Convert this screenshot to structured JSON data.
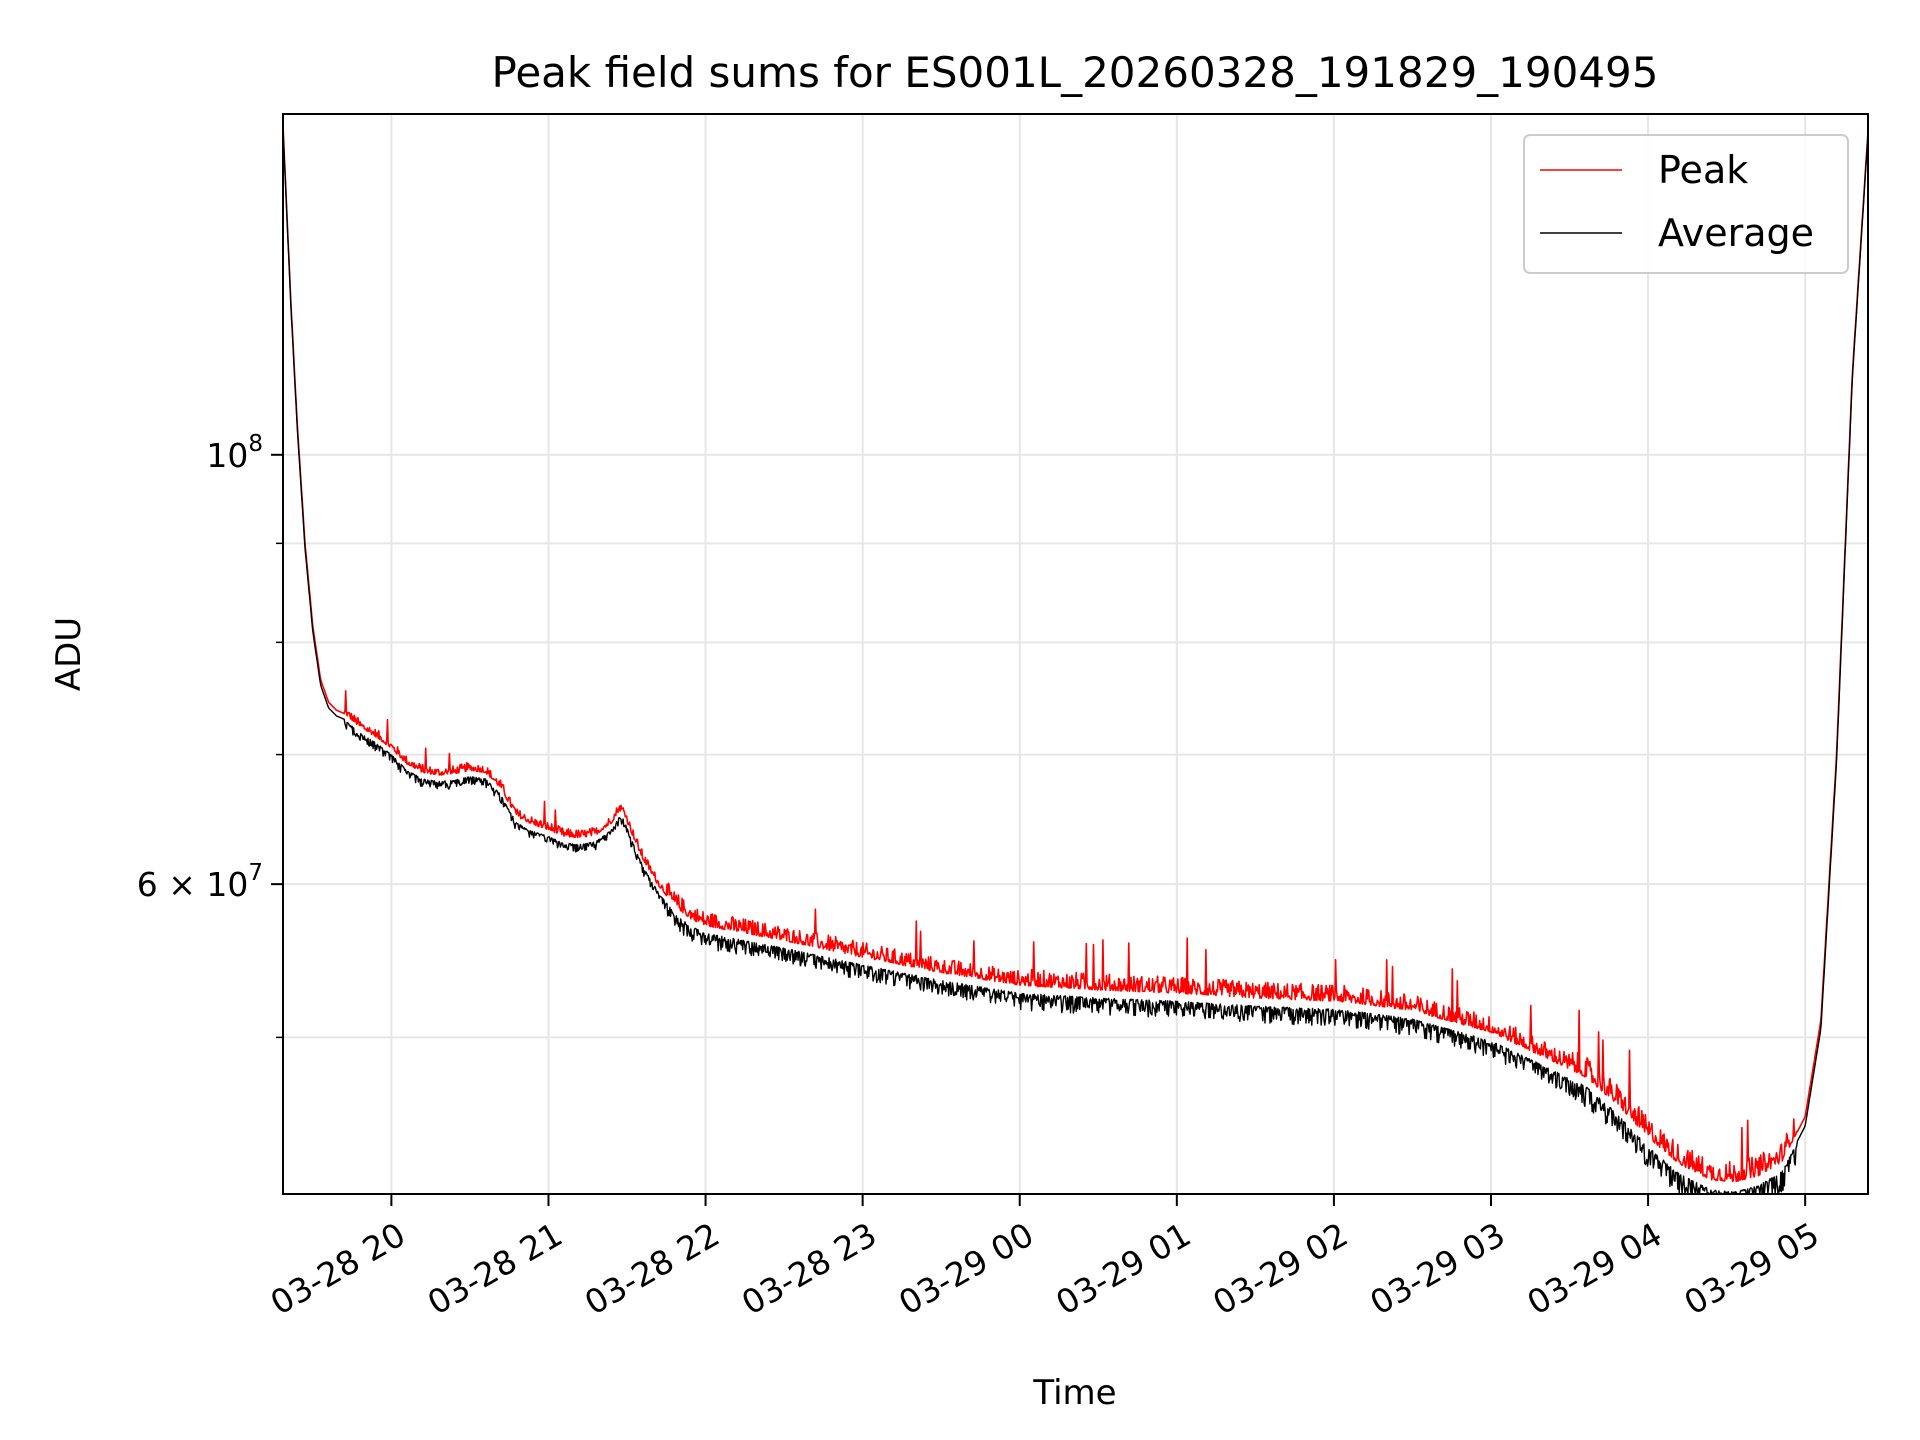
{
  "chart_data": {
    "type": "line",
    "title": "Peak field sums for ES001L_20260328_191829_190495",
    "xlabel": "Time",
    "ylabel": "ADU",
    "yscale": "log",
    "ylim": [
      41500000,
      150000000
    ],
    "xlim_hours": [
      19.31,
      29.4
    ],
    "grid": true,
    "legend_position": "upper right",
    "x_ticks": [
      {
        "hour": 20,
        "label": "03-28 20"
      },
      {
        "hour": 21,
        "label": "03-28 21"
      },
      {
        "hour": 22,
        "label": "03-28 22"
      },
      {
        "hour": 23,
        "label": "03-28 23"
      },
      {
        "hour": 24,
        "label": "03-29 00"
      },
      {
        "hour": 25,
        "label": "03-29 01"
      },
      {
        "hour": 26,
        "label": "03-29 02"
      },
      {
        "hour": 27,
        "label": "03-29 03"
      },
      {
        "hour": 28,
        "label": "03-29 04"
      },
      {
        "hour": 29,
        "label": "03-29 05"
      }
    ],
    "y_major_ticks": [
      {
        "value": 100000000,
        "base": "10",
        "exp": "8",
        "mult": ""
      },
      {
        "value": 60000000,
        "base": "10",
        "exp": "7",
        "mult": "6 × "
      }
    ],
    "y_minor_gridlines": [
      50000000,
      70000000,
      80000000,
      90000000
    ],
    "series": [
      {
        "name": "Peak",
        "color": "#ff0000",
        "noise": "up",
        "x_hours": [
          19.31,
          19.33,
          19.36,
          19.4,
          19.45,
          19.5,
          19.55,
          19.6,
          19.65,
          19.7,
          19.8,
          19.9,
          20.0,
          20.1,
          20.2,
          20.3,
          20.4,
          20.5,
          20.6,
          20.7,
          20.75,
          20.8,
          20.9,
          21.0,
          21.1,
          21.2,
          21.3,
          21.4,
          21.45,
          21.48,
          21.52,
          21.6,
          21.7,
          21.8,
          21.9,
          22.0,
          22.2,
          22.5,
          23.0,
          23.5,
          24.0,
          24.5,
          25.0,
          25.5,
          26.0,
          26.2,
          26.5,
          27.0,
          27.3,
          27.6,
          27.8,
          28.0,
          28.2,
          28.4,
          28.55,
          28.7,
          28.85,
          29.0,
          29.1,
          29.2,
          29.3,
          29.4
        ],
        "values": [
          148000000,
          136000000,
          120000000,
          104000000,
          90000000,
          81500000,
          76500000,
          74500000,
          73800000,
          73500000,
          72300000,
          71500000,
          70500000,
          69200000,
          68500000,
          68300000,
          68400000,
          68700000,
          68500000,
          67200000,
          66000000,
          65000000,
          64400000,
          64000000,
          63500000,
          63400000,
          63600000,
          64500000,
          65500000,
          65300000,
          64000000,
          61800000,
          59900000,
          58500000,
          57600000,
          57100000,
          56700000,
          56100000,
          55000000,
          54000000,
          53200000,
          52900000,
          52700000,
          52400000,
          52200000,
          52000000,
          51600000,
          50300000,
          49000000,
          47700000,
          46200000,
          44400000,
          43000000,
          42200000,
          42100000,
          42400000,
          43100000,
          45500000,
          51000000,
          70000000,
          110000000,
          147000000
        ]
      },
      {
        "name": "Average",
        "color": "#000000",
        "noise": "down",
        "x_hours": [
          19.31,
          19.33,
          19.36,
          19.4,
          19.45,
          19.5,
          19.55,
          19.6,
          19.65,
          19.7,
          19.8,
          19.9,
          20.0,
          20.1,
          20.2,
          20.3,
          20.4,
          20.5,
          20.6,
          20.7,
          20.75,
          20.8,
          20.9,
          21.0,
          21.1,
          21.2,
          21.3,
          21.4,
          21.45,
          21.48,
          21.52,
          21.6,
          21.7,
          21.8,
          21.9,
          22.0,
          22.2,
          22.5,
          23.0,
          23.5,
          24.0,
          24.5,
          25.0,
          25.5,
          26.0,
          26.2,
          26.5,
          27.0,
          27.3,
          27.6,
          27.8,
          28.0,
          28.2,
          28.4,
          28.55,
          28.7,
          28.85,
          29.0,
          29.1,
          29.2,
          29.3,
          29.4
        ],
        "values": [
          147500000,
          135500000,
          119500000,
          103500000,
          89500000,
          81000000,
          76000000,
          74000000,
          73300000,
          73000000,
          71800000,
          71000000,
          70000000,
          68700000,
          68000000,
          67800000,
          67900000,
          68200000,
          68000000,
          66700000,
          65500000,
          64500000,
          63900000,
          63500000,
          63000000,
          62900000,
          63100000,
          64000000,
          65000000,
          64800000,
          63500000,
          61300000,
          59400000,
          58000000,
          57100000,
          56600000,
          56200000,
          55600000,
          54500000,
          53500000,
          52700000,
          52400000,
          52200000,
          51900000,
          51700000,
          51500000,
          51100000,
          49800000,
          48500000,
          47200000,
          45700000,
          43900000,
          42500000,
          41700000,
          41600000,
          41900000,
          42600000,
          45000000,
          50500000,
          69500000,
          109500000,
          146500000
        ]
      }
    ]
  }
}
